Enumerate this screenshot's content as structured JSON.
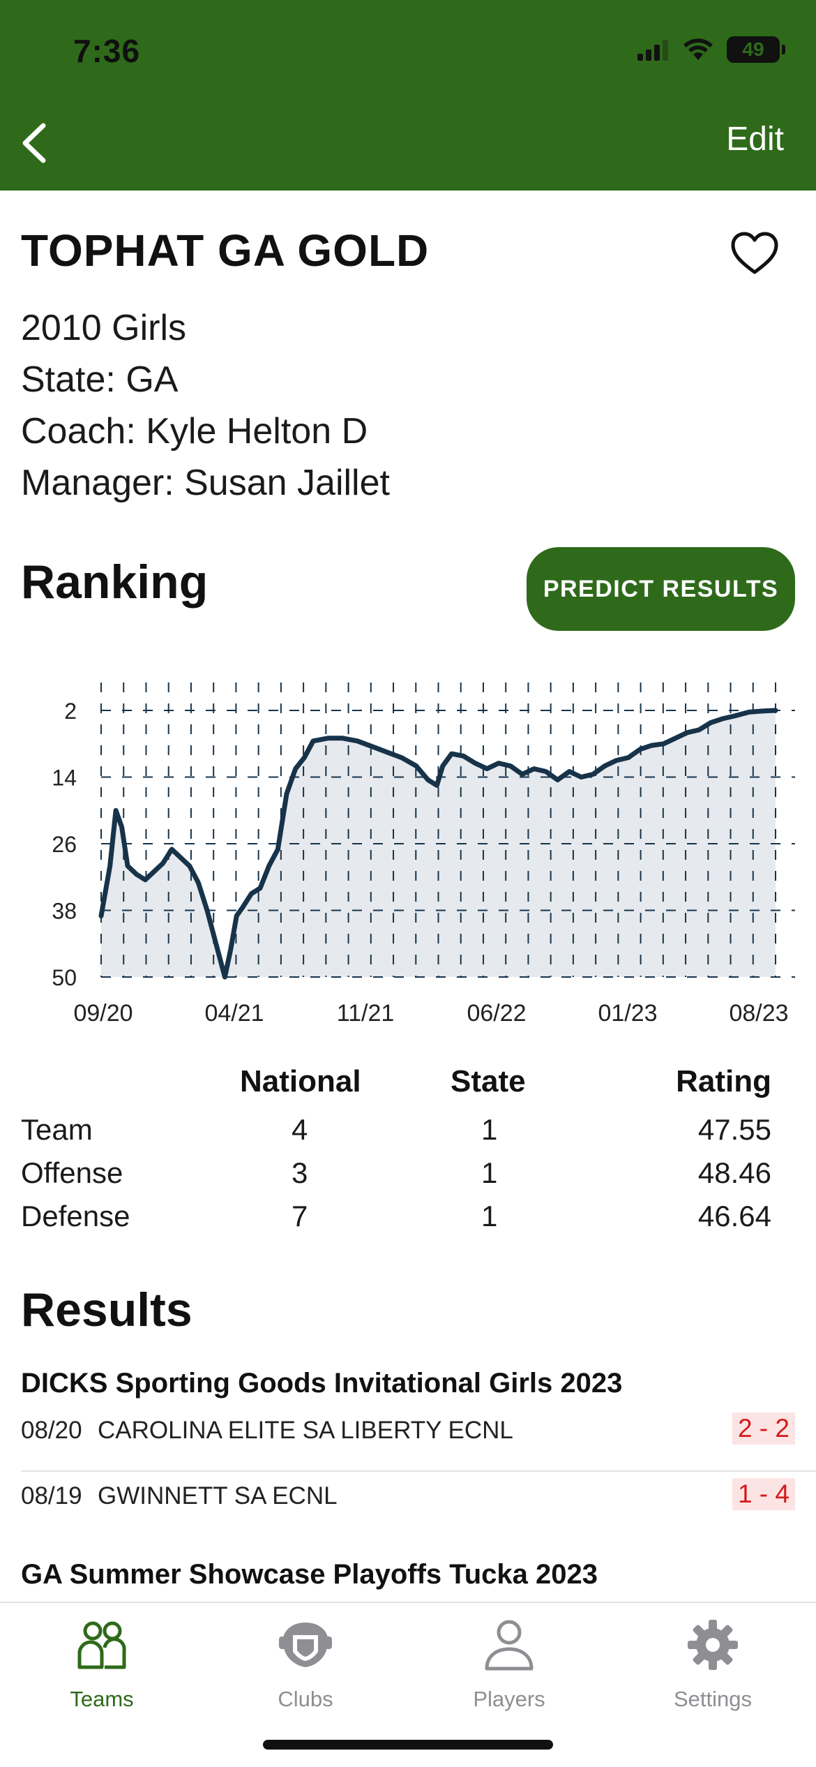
{
  "status_bar": {
    "time": "7:36",
    "battery": "49"
  },
  "nav": {
    "edit_label": "Edit"
  },
  "team": {
    "name": "TOPHAT GA GOLD",
    "age_group": "2010 Girls",
    "state": "State: GA",
    "coach": "Coach: Kyle Helton D",
    "manager": "Manager: Susan Jaillet"
  },
  "ranking": {
    "title": "Ranking",
    "predict_label": "PREDICT RESULTS"
  },
  "chart_data": {
    "type": "area",
    "y_inverted": true,
    "ylim": [
      2,
      50
    ],
    "y_ticks": [
      2,
      14,
      26,
      38,
      50
    ],
    "x_tick_labels": [
      "09/20",
      "04/21",
      "11/21",
      "06/22",
      "01/23",
      "08/23"
    ],
    "grid": "dashed",
    "series_color": "#17334a",
    "fill_color": "#e6e9ed",
    "points": [
      [
        0,
        39
      ],
      [
        0.03,
        30
      ],
      [
        0.05,
        20
      ],
      [
        0.07,
        23
      ],
      [
        0.09,
        30
      ],
      [
        0.12,
        31.5
      ],
      [
        0.15,
        32.5
      ],
      [
        0.18,
        31
      ],
      [
        0.21,
        29.5
      ],
      [
        0.24,
        27
      ],
      [
        0.27,
        28.5
      ],
      [
        0.3,
        30
      ],
      [
        0.33,
        33
      ],
      [
        0.36,
        38
      ],
      [
        0.39,
        44
      ],
      [
        0.42,
        50
      ],
      [
        0.44,
        45
      ],
      [
        0.46,
        39
      ],
      [
        0.48,
        37.5
      ],
      [
        0.51,
        35
      ],
      [
        0.54,
        34
      ],
      [
        0.57,
        30
      ],
      [
        0.6,
        27
      ],
      [
        0.63,
        17
      ],
      [
        0.66,
        12.5
      ],
      [
        0.69,
        10.5
      ],
      [
        0.72,
        7.5
      ],
      [
        0.77,
        7
      ],
      [
        0.82,
        7
      ],
      [
        0.87,
        7.5
      ],
      [
        0.92,
        8.5
      ],
      [
        0.97,
        9.5
      ],
      [
        1.02,
        10.5
      ],
      [
        1.07,
        12
      ],
      [
        1.11,
        14.5
      ],
      [
        1.14,
        15.5
      ],
      [
        1.16,
        12
      ],
      [
        1.19,
        9.8
      ],
      [
        1.23,
        10.2
      ],
      [
        1.27,
        11.5
      ],
      [
        1.31,
        12.5
      ],
      [
        1.35,
        11.5
      ],
      [
        1.39,
        12
      ],
      [
        1.43,
        13.5
      ],
      [
        1.47,
        12.5
      ],
      [
        1.51,
        13
      ],
      [
        1.55,
        14.5
      ],
      [
        1.59,
        13
      ],
      [
        1.63,
        14
      ],
      [
        1.67,
        13.5
      ],
      [
        1.71,
        12
      ],
      [
        1.75,
        11
      ],
      [
        1.79,
        10.5
      ],
      [
        1.83,
        9
      ],
      [
        1.87,
        8.3
      ],
      [
        1.91,
        8
      ],
      [
        1.95,
        7
      ],
      [
        1.99,
        6
      ],
      [
        2.03,
        5.5
      ],
      [
        2.07,
        4.2
      ],
      [
        2.11,
        3.5
      ],
      [
        2.15,
        3
      ],
      [
        2.2,
        2.3
      ],
      [
        2.25,
        2.1
      ],
      [
        2.29,
        2
      ]
    ],
    "x_domain": [
      0,
      2.29
    ]
  },
  "ranks": {
    "headers": [
      "National",
      "State",
      "Rating"
    ],
    "rows": [
      {
        "label": "Team",
        "national": "4",
        "state": "1",
        "rating": "47.55"
      },
      {
        "label": "Offense",
        "national": "3",
        "state": "1",
        "rating": "48.46"
      },
      {
        "label": "Defense",
        "national": "7",
        "state": "1",
        "rating": "46.64"
      }
    ]
  },
  "results": {
    "title": "Results",
    "events": [
      {
        "name": "DICKS Sporting Goods Invitational Girls 2023",
        "games": [
          {
            "date": "08/20",
            "opponent": "CAROLINA ELITE SA LIBERTY ECNL",
            "score": "2 - 2"
          },
          {
            "date": "08/19",
            "opponent": "GWINNETT SA ECNL",
            "score": "1 - 4"
          }
        ]
      },
      {
        "name": "GA Summer Showcase Playoffs Tucka 2023",
        "games": []
      }
    ]
  },
  "tabs": [
    {
      "label": "Teams",
      "icon": "teams-icon",
      "active": true
    },
    {
      "label": "Clubs",
      "icon": "clubs-icon",
      "active": false
    },
    {
      "label": "Players",
      "icon": "players-icon",
      "active": false
    },
    {
      "label": "Settings",
      "icon": "settings-icon",
      "active": false
    }
  ],
  "colors": {
    "brand": "#2e6a1a",
    "active_tab": "#2e6a1a",
    "inactive_tab": "#8e8e93",
    "loss": "#d61a1a"
  }
}
